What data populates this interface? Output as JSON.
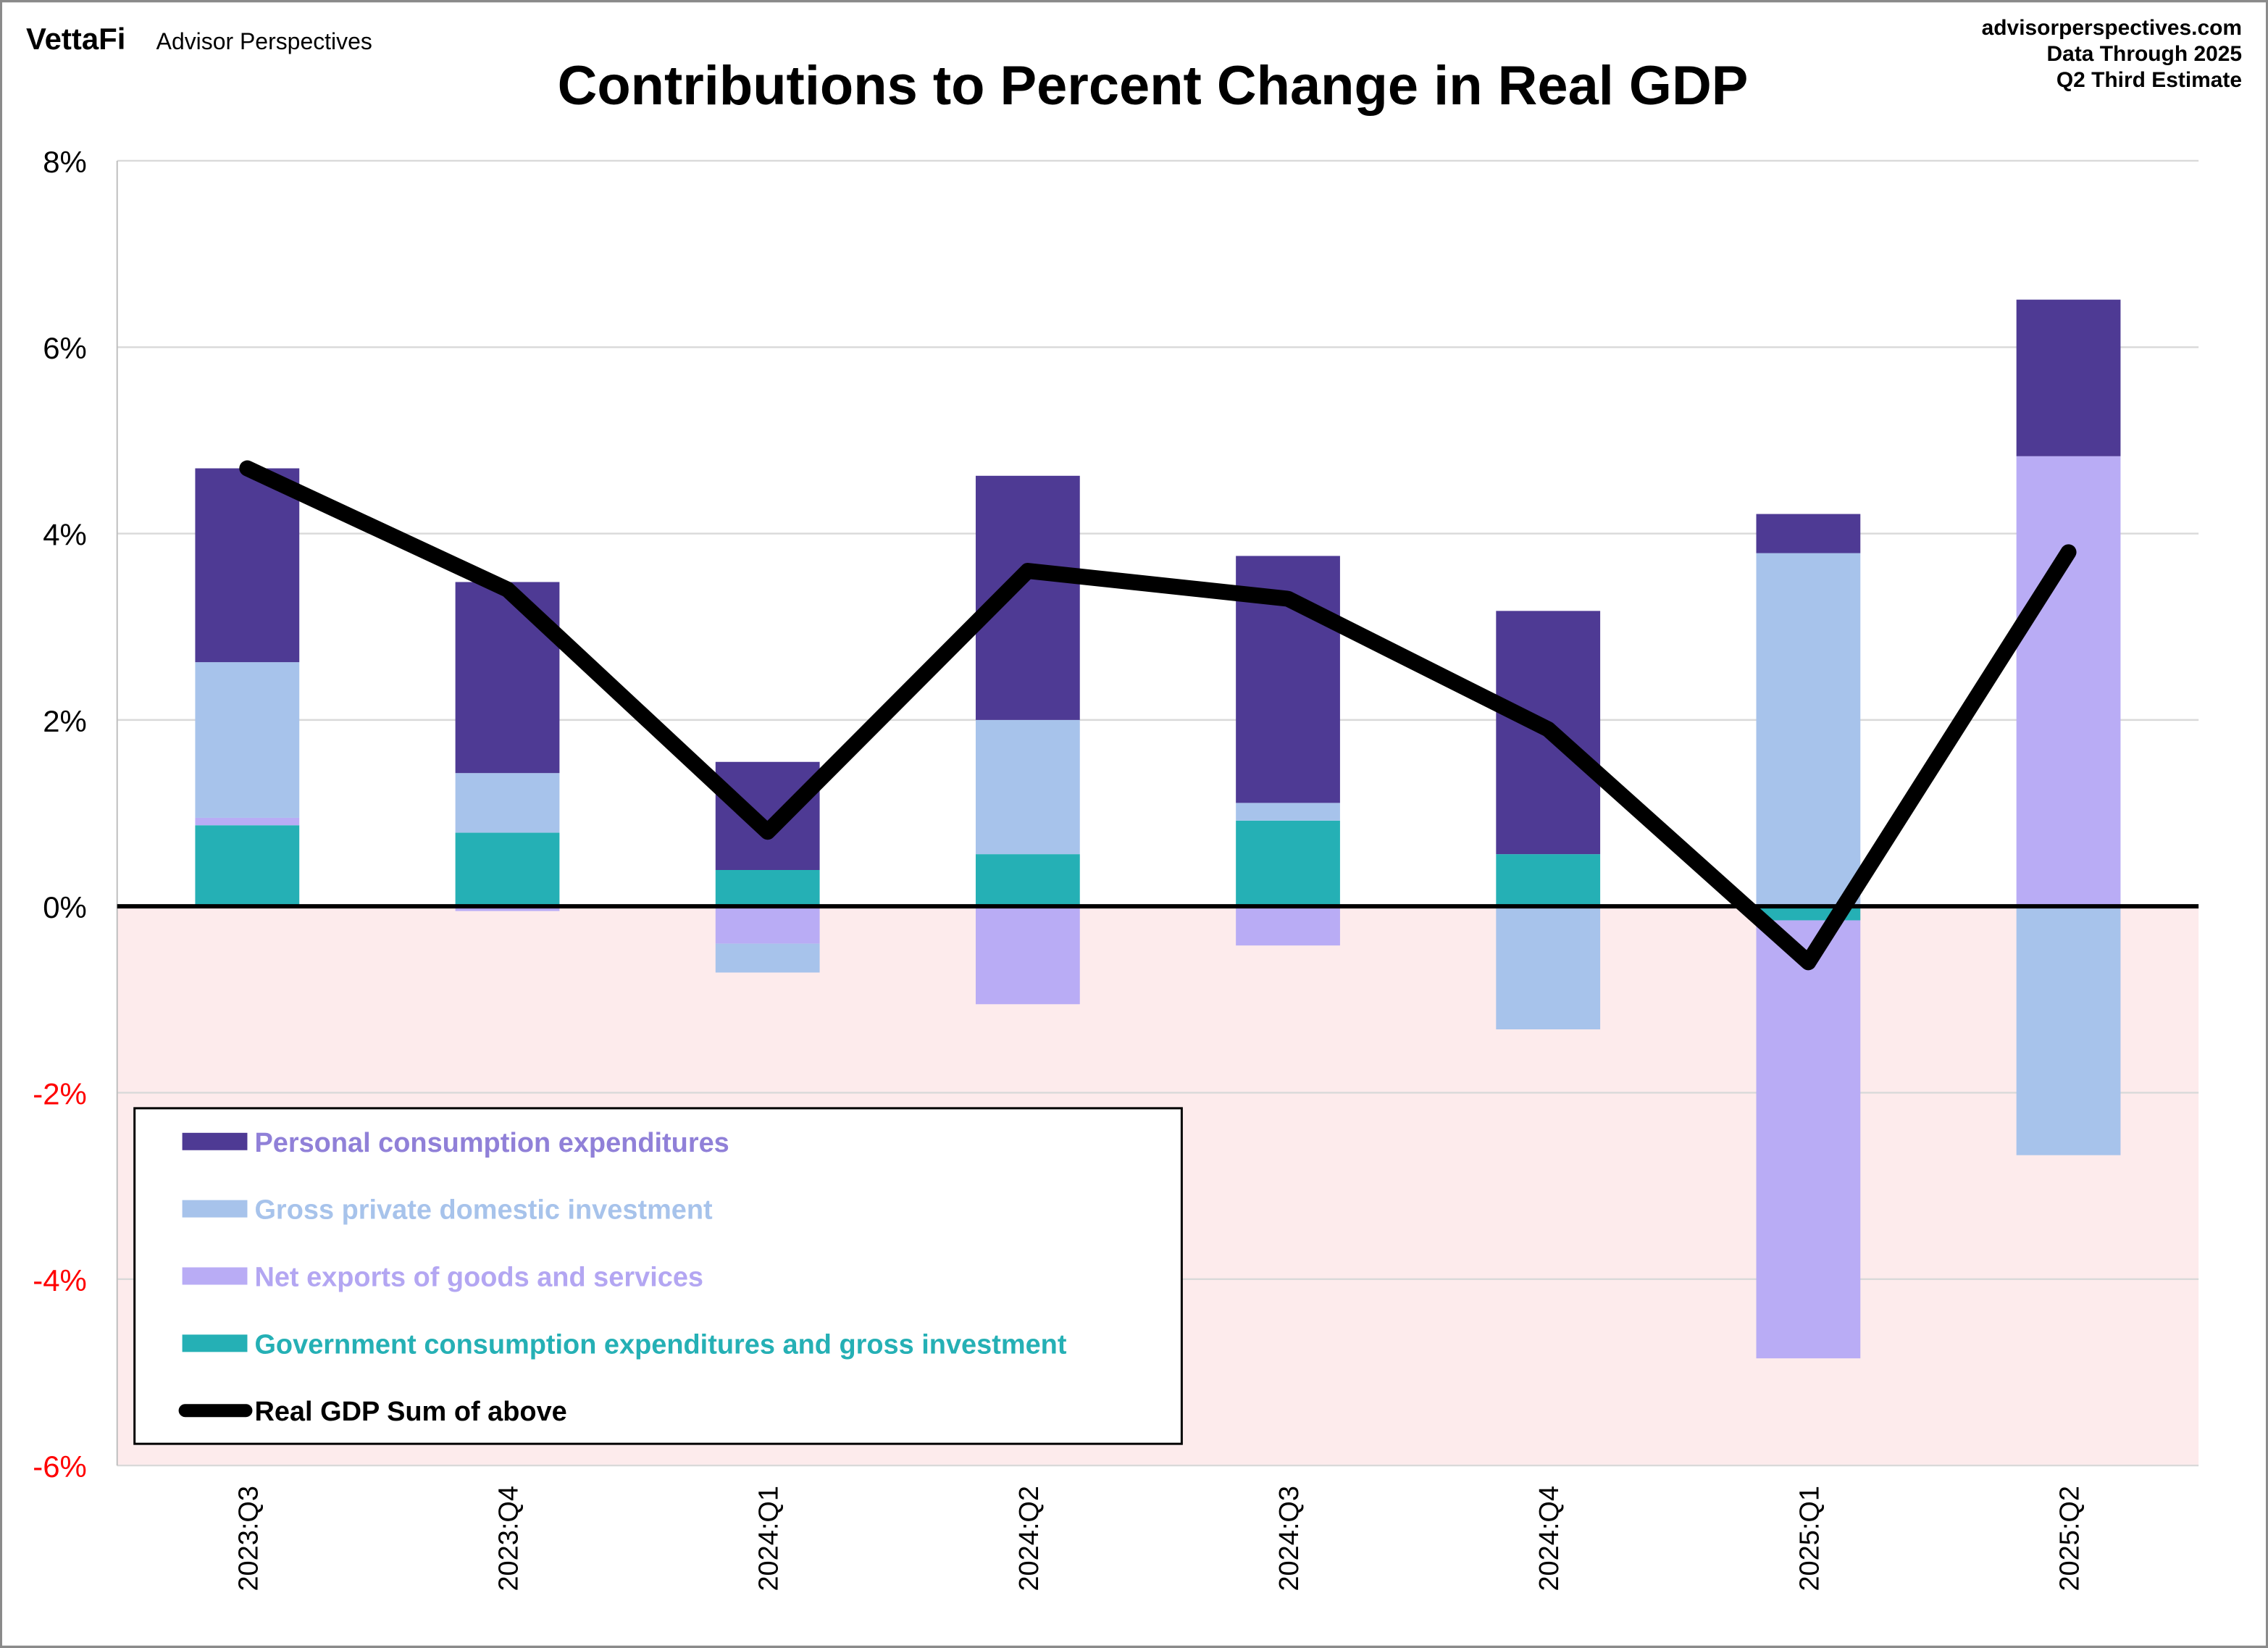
{
  "header": {
    "brand": "VettaFi",
    "brand_sub": "Advisor Perspectives",
    "site": "advisorperspectives.com",
    "data_through_1": "Data Through 2025",
    "data_through_2": "Q2 Third Estimate"
  },
  "chart_data": {
    "type": "bar",
    "stacked": true,
    "title": "Contributions to Percent Change in Real GDP",
    "categories": [
      "2023:Q3",
      "2023:Q4",
      "2024:Q1",
      "2024:Q2",
      "2024:Q3",
      "2024:Q4",
      "2025:Q1",
      "2025:Q2"
    ],
    "ylim": [
      -6,
      8
    ],
    "yticks": [
      8,
      6,
      4,
      2,
      0,
      -2,
      -4,
      -6
    ],
    "ytick_labels": [
      "8%",
      "6%",
      "4%",
      "2%",
      "0%",
      "-2%",
      "-4%",
      "-6%"
    ],
    "grid": true,
    "negative_region_shaded": true,
    "legend_placement": "bottom-left",
    "series": [
      {
        "name": "Government consumption expenditures and gross investment",
        "color": "#25b0b5",
        "label_color": "#25b0b5",
        "values": [
          0.87,
          0.79,
          0.39,
          0.56,
          0.92,
          0.56,
          -0.15,
          0.0
        ]
      },
      {
        "name": "Net exports of goods and services",
        "color": "#b9acf5",
        "label_color": "#b3a6f2",
        "values": [
          0.08,
          -0.05,
          -0.4,
          -1.05,
          -0.42,
          0.0,
          -4.7,
          4.83
        ]
      },
      {
        "name": "Gross private domestic investment",
        "color": "#a7c3eb",
        "label_color": "#a7c3eb",
        "values": [
          1.67,
          0.64,
          -0.31,
          1.44,
          0.19,
          -1.32,
          3.79,
          -2.67
        ]
      },
      {
        "name": "Personal consumption expenditures",
        "color": "#4e3a94",
        "label_color": "#9080d8",
        "values": [
          2.08,
          2.05,
          1.16,
          2.62,
          2.65,
          2.61,
          0.42,
          1.68
        ]
      }
    ],
    "line": {
      "name": "Real GDP Sum of above",
      "color": "#000000",
      "values": [
        4.7,
        3.4,
        0.8,
        3.6,
        3.3,
        1.9,
        -0.6,
        3.8
      ]
    },
    "legend_order": [
      "Personal consumption expenditures",
      "Gross private domestic investment",
      "Net exports of goods and services",
      "Government consumption expenditures and gross investment",
      "Real GDP Sum of above"
    ]
  }
}
